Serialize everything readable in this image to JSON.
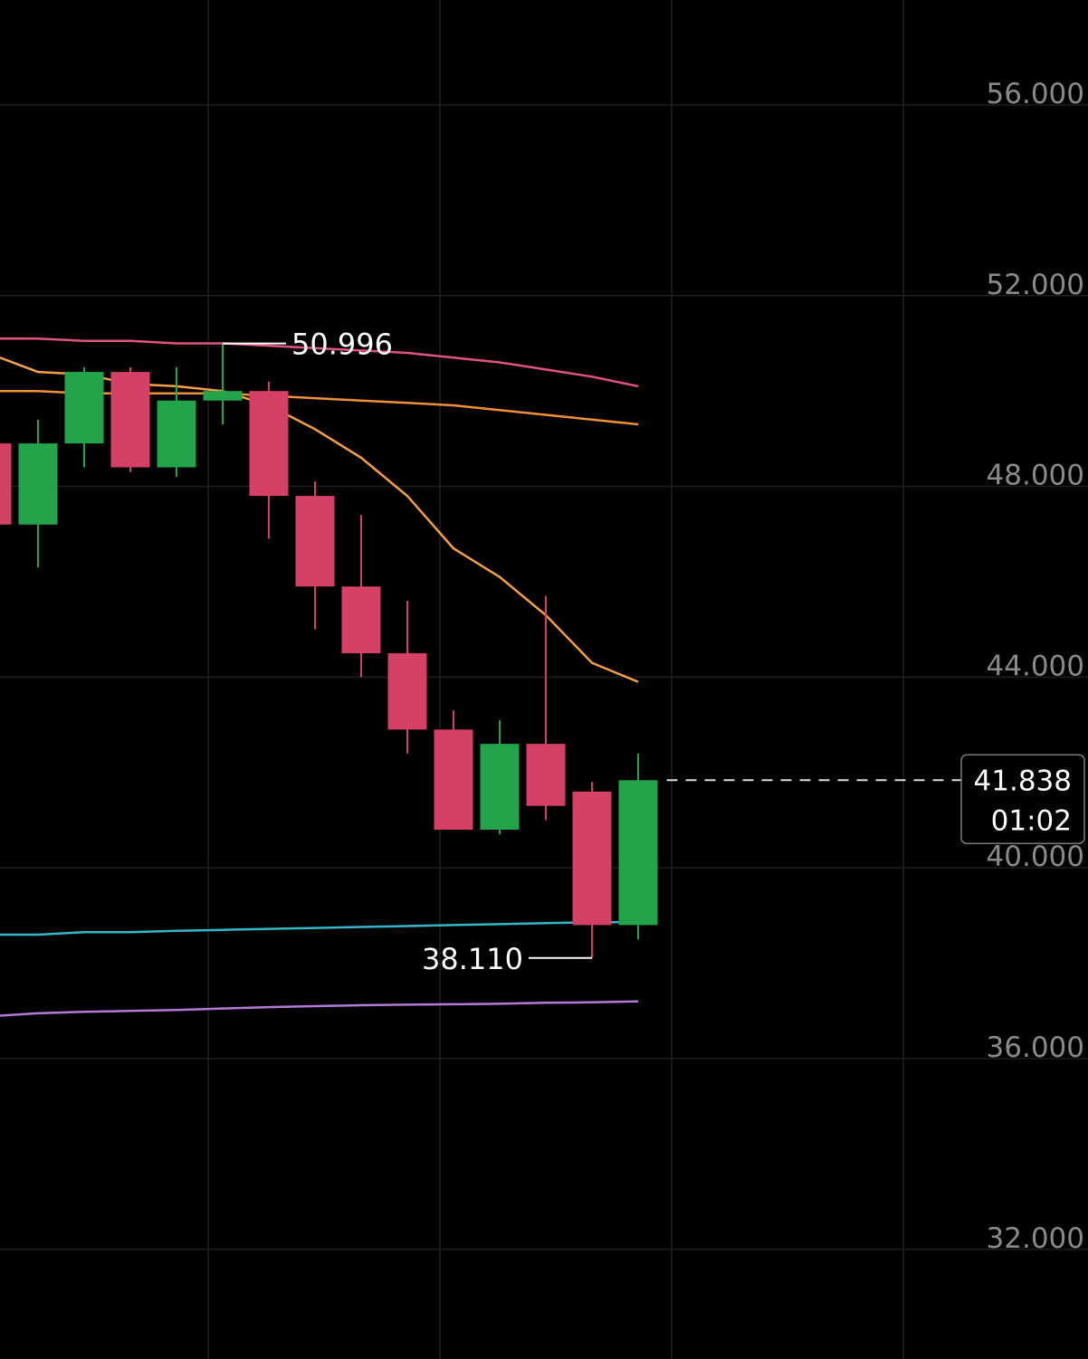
{
  "chart_data": {
    "type": "candlestick",
    "y_axis": {
      "ylim": [
        29.7,
        58.2
      ],
      "ticks": [
        "56.000",
        "52.000",
        "48.000",
        "44.000",
        "40.000",
        "36.000",
        "32.000"
      ],
      "tick_values": [
        56,
        52,
        48,
        44,
        40,
        36,
        32
      ],
      "position": "right"
    },
    "candles": [
      {
        "o": 48.9,
        "h": 48.9,
        "l": 47.2,
        "c": 47.2
      },
      {
        "o": 47.2,
        "h": 49.4,
        "l": 46.3,
        "c": 48.9
      },
      {
        "o": 48.9,
        "h": 50.5,
        "l": 48.4,
        "c": 50.4
      },
      {
        "o": 50.4,
        "h": 50.5,
        "l": 48.3,
        "c": 48.4
      },
      {
        "o": 48.4,
        "h": 50.5,
        "l": 48.2,
        "c": 49.8
      },
      {
        "o": 49.8,
        "h": 50.996,
        "l": 49.3,
        "c": 50.0
      },
      {
        "o": 50.0,
        "h": 50.2,
        "l": 46.9,
        "c": 47.8
      },
      {
        "o": 47.8,
        "h": 48.1,
        "l": 45.0,
        "c": 45.9
      },
      {
        "o": 45.9,
        "h": 47.4,
        "l": 44.0,
        "c": 44.5
      },
      {
        "o": 44.5,
        "h": 45.6,
        "l": 42.4,
        "c": 42.9
      },
      {
        "o": 42.9,
        "h": 43.3,
        "l": 40.8,
        "c": 40.8
      },
      {
        "o": 40.8,
        "h": 43.1,
        "l": 40.7,
        "c": 42.6
      },
      {
        "o": 42.6,
        "h": 45.7,
        "l": 41.0,
        "c": 41.3
      },
      {
        "o": 41.6,
        "h": 41.8,
        "l": 38.11,
        "c": 38.8
      },
      {
        "o": 38.8,
        "h": 42.4,
        "l": 38.5,
        "c": 41.838
      }
    ],
    "moving_averages": [
      {
        "color": "#e0557f",
        "values": [
          51.1,
          51.1,
          51.05,
          51.05,
          51.0,
          51.0,
          50.95,
          50.9,
          50.85,
          50.8,
          50.7,
          50.6,
          50.45,
          50.3,
          50.1
        ]
      },
      {
        "color": "#f0913a",
        "values": [
          50.0,
          50.0,
          49.95,
          49.95,
          49.95,
          49.95,
          49.9,
          49.85,
          49.8,
          49.75,
          49.7,
          49.6,
          49.5,
          49.4,
          49.3
        ]
      },
      {
        "color": "#f5a04a",
        "values": [
          50.7,
          50.4,
          50.35,
          50.15,
          50.1,
          50.0,
          49.7,
          49.2,
          48.6,
          47.8,
          46.7,
          46.1,
          45.3,
          44.3,
          43.9
        ]
      },
      {
        "color": "#35b7c9",
        "values": [
          38.6,
          38.6,
          38.65,
          38.65,
          38.68,
          38.7,
          38.72,
          38.74,
          38.76,
          38.78,
          38.8,
          38.82,
          38.84,
          38.86,
          38.86
        ]
      },
      {
        "color": "#b37ad6",
        "values": [
          36.9,
          36.95,
          36.98,
          37.0,
          37.02,
          37.05,
          37.08,
          37.1,
          37.12,
          37.13,
          37.14,
          37.15,
          37.17,
          37.18,
          37.2
        ]
      }
    ],
    "colors": {
      "up": "#24a44a",
      "down": "#d44066",
      "background": "#000000",
      "grid": "#1f1f1f"
    },
    "annotations": {
      "high": {
        "label": "50.996",
        "value": 50.996
      },
      "low": {
        "label": "38.110",
        "value": 38.11
      }
    },
    "current_price": {
      "label": "41.838",
      "value": 41.838,
      "countdown": "01:02"
    },
    "grid": true
  }
}
